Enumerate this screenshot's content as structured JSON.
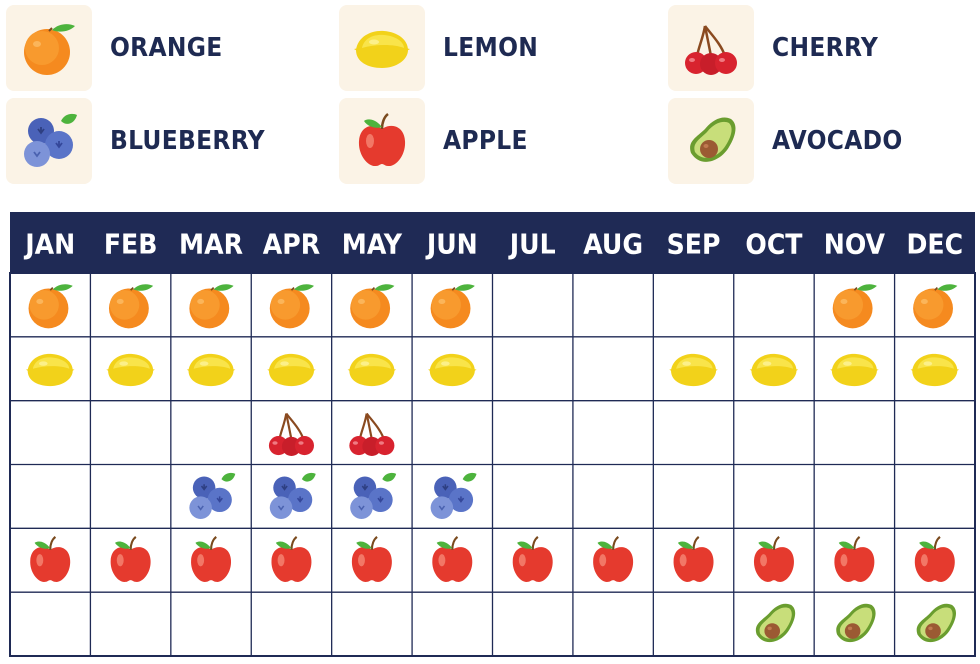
{
  "colors": {
    "header": "#1f2a55",
    "grid": "#1f2a55",
    "tile": "#fbf3e6",
    "label": "#1e2a52"
  },
  "legend": [
    {
      "key": "orange",
      "label": "ORANGE",
      "icon": "orange-icon"
    },
    {
      "key": "lemon",
      "label": "LEMON",
      "icon": "lemon-icon"
    },
    {
      "key": "cherry",
      "label": "CHERRY",
      "icon": "cherry-icon"
    },
    {
      "key": "blueberry",
      "label": "BLUEBERRY",
      "icon": "blueberry-icon"
    },
    {
      "key": "apple",
      "label": "APPLE",
      "icon": "apple-icon"
    },
    {
      "key": "avocado",
      "label": "AVOCADO",
      "icon": "avocado-icon"
    }
  ],
  "chart_data": {
    "type": "table",
    "title": "",
    "months": [
      "JAN",
      "FEB",
      "MAR",
      "APR",
      "MAY",
      "JUN",
      "JUL",
      "AUG",
      "SEP",
      "OCT",
      "NOV",
      "DEC"
    ],
    "rows": [
      {
        "fruit": "orange",
        "in_season": [
          1,
          1,
          1,
          1,
          1,
          1,
          0,
          0,
          0,
          0,
          1,
          1
        ]
      },
      {
        "fruit": "lemon",
        "in_season": [
          1,
          1,
          1,
          1,
          1,
          1,
          0,
          0,
          1,
          1,
          1,
          1
        ]
      },
      {
        "fruit": "cherry",
        "in_season": [
          0,
          0,
          0,
          1,
          1,
          0,
          0,
          0,
          0,
          0,
          0,
          0
        ]
      },
      {
        "fruit": "blueberry",
        "in_season": [
          0,
          0,
          1,
          1,
          1,
          1,
          0,
          0,
          0,
          0,
          0,
          0
        ]
      },
      {
        "fruit": "apple",
        "in_season": [
          1,
          1,
          1,
          1,
          1,
          1,
          1,
          1,
          1,
          1,
          1,
          1
        ]
      },
      {
        "fruit": "avocado",
        "in_season": [
          0,
          0,
          0,
          0,
          0,
          0,
          0,
          0,
          0,
          1,
          1,
          1
        ]
      }
    ]
  }
}
